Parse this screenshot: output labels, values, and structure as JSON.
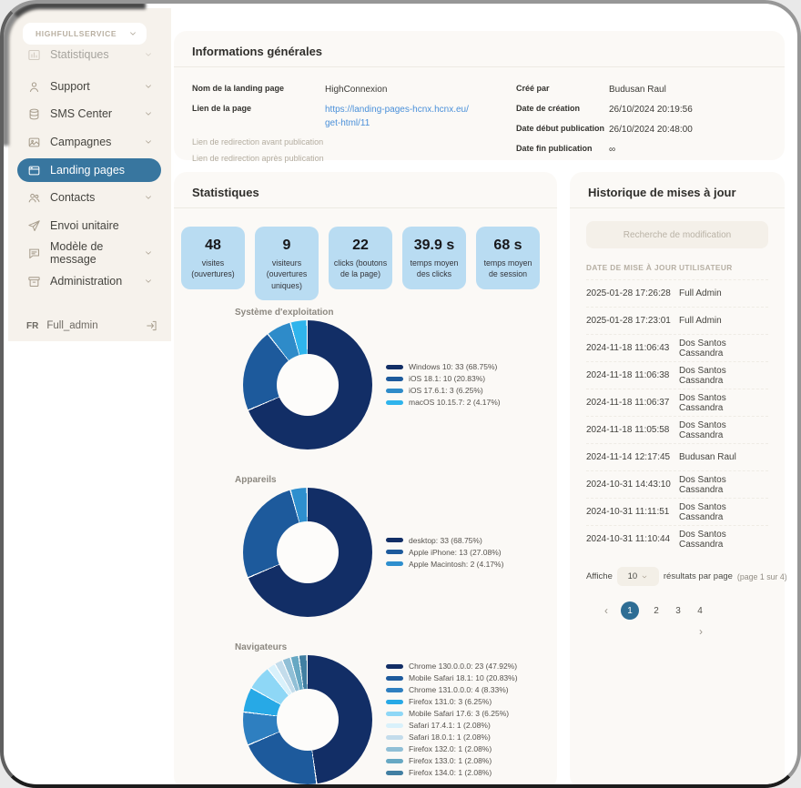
{
  "sidebar": {
    "workspace": "HIGHFULLSERVICE",
    "items": [
      {
        "label": "Statistiques",
        "icon": "bar-chart",
        "chevron": true,
        "truncated": true
      },
      {
        "label": "Support",
        "icon": "support",
        "chevron": true
      },
      {
        "label": "SMS Center",
        "icon": "database",
        "chevron": true
      },
      {
        "label": "Campagnes",
        "icon": "image",
        "chevron": true
      },
      {
        "label": "Landing pages",
        "icon": "browser",
        "active": true
      },
      {
        "label": "Contacts",
        "icon": "people",
        "chevron": true
      },
      {
        "label": "Envoi unitaire",
        "icon": "send"
      },
      {
        "label": "Modèle de message",
        "icon": "message",
        "chevron": true
      },
      {
        "label": "Administration",
        "icon": "archive",
        "chevron": true
      }
    ],
    "language": "FR",
    "user": "Full_admin"
  },
  "info_panel": {
    "title": "Informations générales",
    "fields_left": [
      {
        "label": "Nom de la landing page",
        "value": "HighConnexion",
        "style": "bold"
      },
      {
        "label": "Lien de la page",
        "value": "https://landing-pages-hcnx.hcnx.eu/get-html/11",
        "style": "bold",
        "link": true
      },
      {
        "label": "Lien de redirection avant publication",
        "value": "",
        "style": "muted"
      },
      {
        "label": "Lien de redirection après publication",
        "value": "",
        "style": "muted"
      }
    ],
    "fields_right": [
      {
        "label": "Créé par",
        "value": "Budusan Raul",
        "style": "bold"
      },
      {
        "label": "Date de création",
        "value": "26/10/2024 20:19:56",
        "style": "bold"
      },
      {
        "label": "Date début publication",
        "value": "26/10/2024 20:48:00",
        "style": "bold"
      },
      {
        "label": "Date fin publication",
        "value": "∞",
        "style": "bold"
      }
    ]
  },
  "stats_panel": {
    "title": "Statistiques",
    "cards": [
      {
        "value": "48",
        "label": "visites (ouvertures)"
      },
      {
        "value": "9",
        "label": "visiteurs (ouvertures uniques)"
      },
      {
        "value": "22",
        "label": "clicks (boutons de la page)"
      },
      {
        "value": "39.9 s",
        "label": "temps moyen des clicks"
      },
      {
        "value": "68 s",
        "label": "temps moyen de session"
      }
    ]
  },
  "chart_data": [
    {
      "type": "pie",
      "title": "Système d'exploitation",
      "legend_position": "right",
      "series": [
        {
          "name": "Windows 10",
          "count": 33,
          "pct": "68.75",
          "color": "#122e66"
        },
        {
          "name": "iOS 18.1",
          "count": 10,
          "pct": "20.83",
          "color": "#1d5a9c"
        },
        {
          "name": "iOS 17.6.1",
          "count": 3,
          "pct": "6.25",
          "color": "#2e8bc9"
        },
        {
          "name": "macOS 10.15.7",
          "count": 2,
          "pct": "4.17",
          "color": "#2fb4ec"
        }
      ]
    },
    {
      "type": "pie",
      "title": "Appareils",
      "legend_position": "right",
      "series": [
        {
          "name": "desktop",
          "count": 33,
          "pct": "68.75",
          "color": "#122e66"
        },
        {
          "name": "Apple iPhone",
          "count": 13,
          "pct": "27.08",
          "color": "#1d5a9c"
        },
        {
          "name": "Apple Macintosh",
          "count": 2,
          "pct": "4.17",
          "color": "#2e8fce"
        }
      ]
    },
    {
      "type": "pie",
      "title": "Navigateurs",
      "legend_position": "right",
      "series": [
        {
          "name": "Chrome 130.0.0.0",
          "count": 23,
          "pct": "47.92",
          "color": "#122e66"
        },
        {
          "name": "Mobile Safari 18.1",
          "count": 10,
          "pct": "20.83",
          "color": "#1d5a9c"
        },
        {
          "name": "Chrome 131.0.0.0",
          "count": 4,
          "pct": "8.33",
          "color": "#2e7fc0"
        },
        {
          "name": "Firefox 131.0",
          "count": 3,
          "pct": "6.25",
          "color": "#27a9e6"
        },
        {
          "name": "Mobile Safari 17.6",
          "count": 3,
          "pct": "6.25",
          "color": "#8ed7f6"
        },
        {
          "name": "Safari 17.4.1",
          "count": 1,
          "pct": "2.08",
          "color": "#d9f1fb"
        },
        {
          "name": "Safari 18.0.1",
          "count": 1,
          "pct": "2.08",
          "color": "#c3dceb"
        },
        {
          "name": "Firefox 132.0",
          "count": 1,
          "pct": "2.08",
          "color": "#90bfd6"
        },
        {
          "name": "Firefox 133.0",
          "count": 1,
          "pct": "2.08",
          "color": "#67a8c3"
        },
        {
          "name": "Firefox 134.0",
          "count": 1,
          "pct": "2.08",
          "color": "#417fa2"
        }
      ]
    }
  ],
  "history_panel": {
    "title": "Historique de mises à jour",
    "search_placeholder": "Recherche de modification",
    "columns": [
      "DATE DE MISE À JOUR",
      "UTILISATEUR"
    ],
    "rows": [
      {
        "date": "2025-01-28 17:26:28",
        "user": "Full Admin"
      },
      {
        "date": "2025-01-28 17:23:01",
        "user": "Full Admin"
      },
      {
        "date": "2024-11-18 11:06:43",
        "user": "Dos Santos Cassandra"
      },
      {
        "date": "2024-11-18 11:06:38",
        "user": "Dos Santos Cassandra"
      },
      {
        "date": "2024-11-18 11:06:37",
        "user": "Dos Santos Cassandra"
      },
      {
        "date": "2024-11-18 11:05:58",
        "user": "Dos Santos Cassandra"
      },
      {
        "date": "2024-11-14 12:17:45",
        "user": "Budusan Raul"
      },
      {
        "date": "2024-10-31 14:43:10",
        "user": "Dos Santos Cassandra"
      },
      {
        "date": "2024-10-31 11:11:51",
        "user": "Dos Santos Cassandra"
      },
      {
        "date": "2024-10-31 11:10:44",
        "user": "Dos Santos Cassandra"
      }
    ],
    "pagination": {
      "prefix": "Affiche",
      "per_page": "10",
      "suffix": "résultats par page",
      "page_info": "(page 1 sur 4)",
      "pages": [
        "1",
        "2",
        "3",
        "4"
      ],
      "active_page": "1",
      "prev": "‹",
      "next": "›"
    }
  },
  "colors": {
    "sidebar_bg": "#f6f2ec",
    "active_item": "#38769f",
    "stat_card": "#b9dcf2",
    "active_page": "#2e6d94",
    "link": "#4a90d9"
  }
}
